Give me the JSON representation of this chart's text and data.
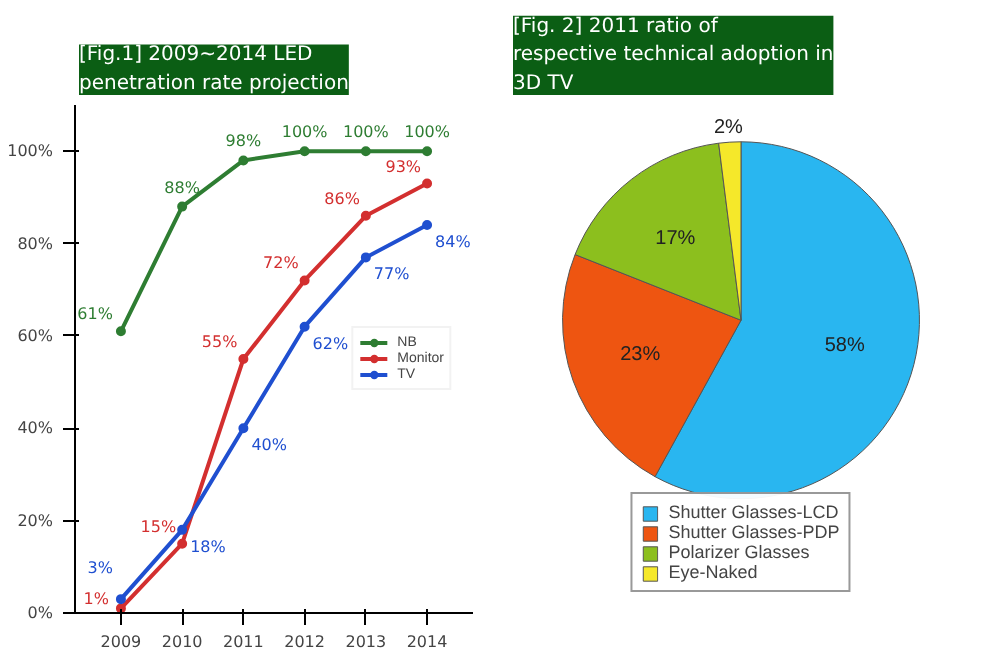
{
  "chart_data": [
    {
      "type": "line",
      "title": "[Fig.1] 2009~2014 LED penetration rate projection",
      "categories": [
        "2009",
        "2010",
        "2011",
        "2012",
        "2013",
        "2014"
      ],
      "series": [
        {
          "name": "NB",
          "color": "#2e7d32",
          "values": [
            61,
            88,
            98,
            100,
            100,
            100
          ],
          "value_labels": [
            "61%",
            "88%",
            "98%",
            "100%",
            "100%",
            "100%"
          ]
        },
        {
          "name": "Monitor",
          "color": "#d32f2f",
          "values": [
            1,
            15,
            55,
            72,
            86,
            93
          ],
          "value_labels": [
            "1%",
            "15%",
            "55%",
            "72%",
            "86%",
            "93%"
          ]
        },
        {
          "name": "TV",
          "color": "#1f4fd0",
          "values": [
            3,
            18,
            40,
            62,
            77,
            84
          ],
          "value_labels": [
            "3%",
            "18%",
            "40%",
            "62%",
            "77%",
            "84%"
          ]
        }
      ],
      "ylim": [
        0,
        110
      ],
      "yticks": [
        {
          "value": 0,
          "label": "0%"
        },
        {
          "value": 20,
          "label": "20%"
        },
        {
          "value": 40,
          "label": "40%"
        },
        {
          "value": 60,
          "label": "60%"
        },
        {
          "value": 80,
          "label": "80%"
        },
        {
          "value": 100,
          "label": "100%"
        }
      ],
      "marker": "circle",
      "legend": "right",
      "grid": false
    },
    {
      "type": "pie",
      "title": "[Fig. 2] 2011 ratio of respective technical adoption in 3D TV",
      "categories": [
        "Shutter Glasses-LCD",
        "Shutter Glasses-PDP",
        "Polarizer Glasses",
        "Eye-Naked"
      ],
      "values": [
        58,
        23,
        17,
        2
      ],
      "value_labels": [
        "58%",
        "23%",
        "17%",
        "2%"
      ],
      "colors": [
        "#29b6f0",
        "#ee5511",
        "#8cbf1e",
        "#f5e82a"
      ],
      "legend": "bottom"
    }
  ]
}
